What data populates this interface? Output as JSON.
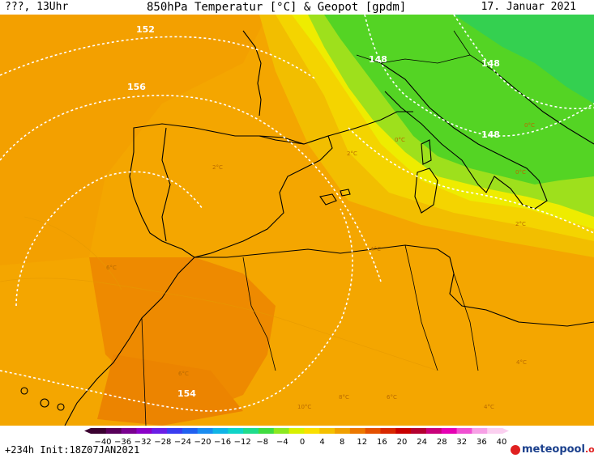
{
  "header": {
    "left": "???, 13Uhr",
    "title": "850hPa Temperatur [°C] & Geopot [gpdm]",
    "date": "17. Januar 2021"
  },
  "map": {
    "geopot_labels": [
      "152",
      "156",
      "148",
      "148",
      "148",
      "154"
    ],
    "temp_labels": [
      "0°C",
      "0°C",
      "0°C",
      "2°C",
      "2°C",
      "2°C",
      "4°C",
      "4°C",
      "6°C",
      "6°C",
      "8°C",
      "6°C",
      "4°C",
      "10°C"
    ]
  },
  "colorbar": {
    "ticks": [
      "−40",
      "−36",
      "−32",
      "−28",
      "−24",
      "−20",
      "−16",
      "−12",
      "−8",
      "−4",
      "0",
      "4",
      "8",
      "12",
      "16",
      "20",
      "24",
      "28",
      "32",
      "36",
      "40"
    ],
    "colors": [
      "#3a0030",
      "#58005a",
      "#7a0090",
      "#8a00c8",
      "#6a1ee6",
      "#3a3cf0",
      "#2060f0",
      "#1a8cf0",
      "#10b4e6",
      "#10d4c8",
      "#20dc8c",
      "#40dc40",
      "#8ce820",
      "#d8f000",
      "#fae000",
      "#f4c000",
      "#f0a000",
      "#ec7800",
      "#e45000",
      "#d82800",
      "#c80000",
      "#b40030",
      "#c8007a",
      "#e600b4",
      "#f050d2",
      "#f7a0e6",
      "#fbd0f0"
    ]
  },
  "footer": {
    "init": "+234h  Init:18Z07JAN2021",
    "logo_main": "meteopool",
    "logo_suffix": ".org"
  }
}
